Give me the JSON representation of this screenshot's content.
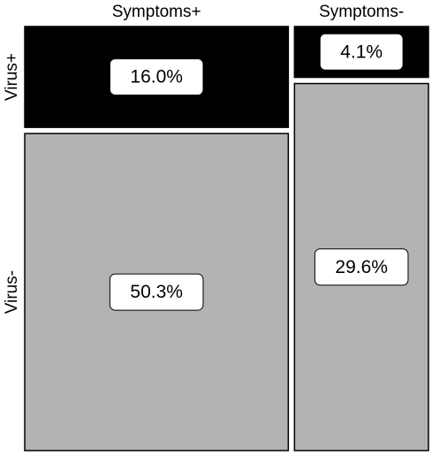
{
  "chart_data": {
    "type": "mosaic",
    "categories": [
      "Symptoms+",
      "Symptoms-"
    ],
    "series": [
      {
        "name": "Virus+",
        "color": "#000000",
        "values": [
          16.0,
          4.1
        ],
        "value_labels": [
          "16.0%",
          "4.1%"
        ]
      },
      {
        "name": "Virus-",
        "color": "#b3b3b3",
        "values": [
          50.3,
          29.6
        ],
        "value_labels": [
          "50.3%",
          "29.6%"
        ]
      }
    ]
  }
}
